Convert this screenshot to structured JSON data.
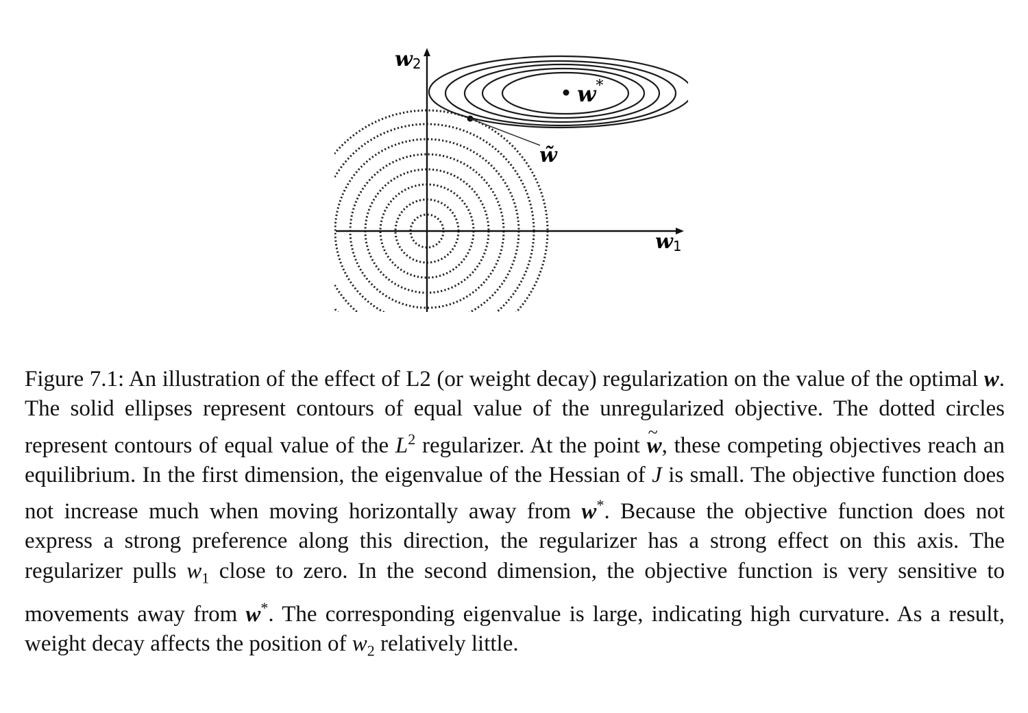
{
  "figure": {
    "axis_w1_label": "w",
    "axis_w1_sub": "1",
    "axis_w2_label": "w",
    "axis_w2_sub": "2",
    "optimum_label": "w",
    "optimum_sup": "*",
    "equilibrium_label": "w̃"
  },
  "caption": {
    "figure_number": "Figure 7.1:",
    "seg1": " An illustration of the effect of L2 (or weight decay) regularization on the value of the optimal ",
    "sym_w": "w",
    "seg2": ". The solid ellipses represent contours of equal value of the unregularized objective. The dotted circles represent contours of equal value of the ",
    "sym_L": "L",
    "sym_L_sup": "2",
    "seg3": " regularizer. At the point ",
    "sym_wtilde": "w",
    "seg4": ", these competing objectives reach an equilibrium. In the first dimension, the eigenvalue of the Hessian of ",
    "sym_J": "J",
    "seg5": " is small. The objective function does not increase much when moving horizontally away from ",
    "sym_wstar1": "w",
    "sym_star": "*",
    "seg6": ". Because the objective function does not express a strong preference along this direction, the regularizer has a strong effect on this axis. The regularizer pulls ",
    "sym_w1": "w",
    "sym_w1_sub": "1",
    "seg7": " close to zero. In the second dimension, the objective function is very sensitive to movements away from ",
    "sym_wstar2": "w",
    "seg8": ". The corresponding eigenvalue is large, indicating high curvature. As a result, weight decay affects the position of ",
    "sym_w2": "w",
    "sym_w2_sub": "2",
    "seg9": " relatively little."
  }
}
